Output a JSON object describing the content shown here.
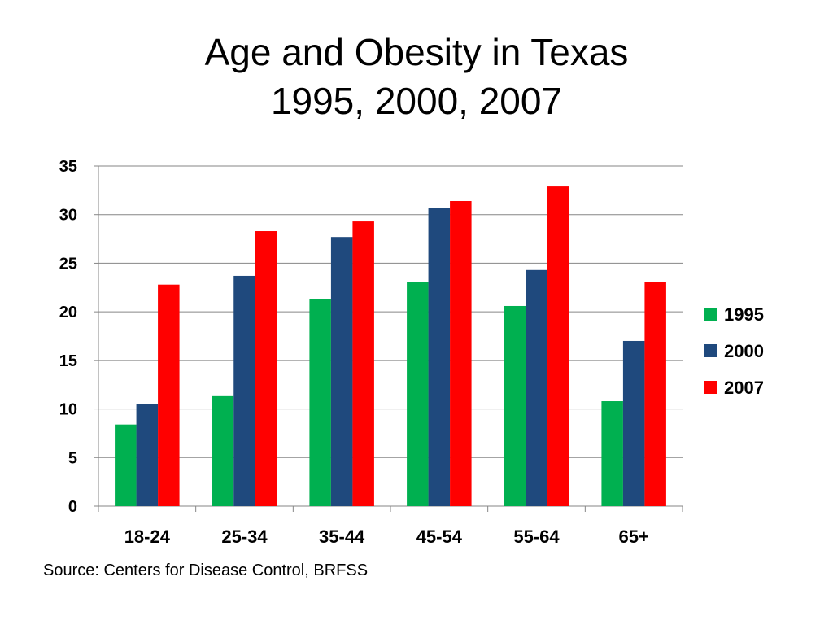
{
  "slide": {
    "title_line1": "Age and Obesity in Texas",
    "title_line2": "1995, 2000, 2007",
    "source": "Source: Centers for Disease Control, BRFSS"
  },
  "chart_data": {
    "type": "bar",
    "title": "",
    "xlabel": "",
    "ylabel": "",
    "categories": [
      "18-24",
      "25-34",
      "35-44",
      "45-54",
      "55-64",
      "65+"
    ],
    "series": [
      {
        "name": "1995",
        "color": "#00b050",
        "values": [
          8.4,
          11.4,
          21.3,
          23.1,
          20.6,
          10.8
        ]
      },
      {
        "name": "2000",
        "color": "#1f497d",
        "values": [
          10.5,
          23.7,
          27.7,
          30.7,
          24.3,
          17.0
        ]
      },
      {
        "name": "2007",
        "color": "#ff0000",
        "values": [
          22.8,
          28.3,
          29.3,
          31.4,
          32.9,
          23.1
        ]
      }
    ],
    "ylim": [
      0,
      35
    ],
    "yticks": [
      0,
      5,
      10,
      15,
      20,
      25,
      30,
      35
    ],
    "grid": true,
    "legend_position": "right"
  }
}
